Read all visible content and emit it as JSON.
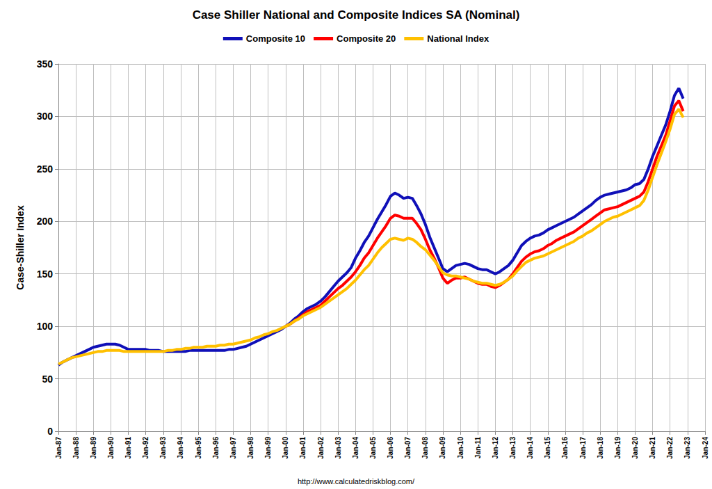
{
  "chart_data": {
    "type": "line",
    "title": "Case Shiller National and Composite Indices SA (Nominal)",
    "y_label": "Case-Shiller Index",
    "source": "http://www.calculatedriskblog.com/",
    "legend": "top",
    "grid": true,
    "ylim": [
      0,
      350
    ],
    "yticks": [
      0,
      50,
      100,
      150,
      200,
      250,
      300,
      350
    ],
    "categories": [
      "Jan-87",
      null,
      null,
      null,
      "Jan-88",
      null,
      null,
      null,
      "Jan-89",
      null,
      null,
      null,
      "Jan-90",
      null,
      null,
      null,
      "Jan-91",
      null,
      null,
      null,
      "Jan-92",
      null,
      null,
      null,
      "Jan-93",
      null,
      null,
      null,
      "Jan-94",
      null,
      null,
      null,
      "Jan-95",
      null,
      null,
      null,
      "Jan-96",
      null,
      null,
      null,
      "Jan-97",
      null,
      null,
      null,
      "Jan-98",
      null,
      null,
      null,
      "Jan-99",
      null,
      null,
      null,
      "Jan-00",
      null,
      null,
      null,
      "Jan-01",
      null,
      null,
      null,
      "Jan-02",
      null,
      null,
      null,
      "Jan-03",
      null,
      null,
      null,
      "Jan-04",
      null,
      null,
      null,
      "Jan-05",
      null,
      null,
      null,
      "Jan-06",
      null,
      null,
      null,
      "Jan-07",
      null,
      null,
      null,
      "Jan-08",
      null,
      null,
      null,
      "Jan-09",
      null,
      null,
      null,
      "Jan-10",
      null,
      null,
      null,
      "Jan-11",
      null,
      null,
      null,
      "Jan-12",
      null,
      null,
      null,
      "Jan-13",
      null,
      null,
      null,
      "Jan-14",
      null,
      null,
      null,
      "Jan-15",
      null,
      null,
      null,
      "Jan-16",
      null,
      null,
      null,
      "Jan-17",
      null,
      null,
      null,
      "Jan-18",
      null,
      null,
      null,
      "Jan-19",
      null,
      null,
      null,
      "Jan-20",
      null,
      null,
      null,
      "Jan-21",
      null,
      null,
      null,
      "Jan-22",
      null,
      null,
      null,
      "Jan-23",
      null,
      null,
      null,
      "Jan-24"
    ],
    "series": [
      {
        "name": "Composite 10",
        "color": "#1010b8",
        "values": [
          63,
          66,
          68,
          70,
          72,
          74,
          76,
          78,
          80,
          81,
          82,
          83,
          83,
          83,
          82,
          80,
          78,
          78,
          78,
          78,
          78,
          77,
          77,
          77,
          76,
          76,
          76,
          76,
          76,
          76,
          77,
          77,
          77,
          77,
          77,
          77,
          77,
          77,
          77,
          78,
          78,
          79,
          80,
          81,
          83,
          85,
          87,
          89,
          91,
          93,
          95,
          97,
          100,
          103,
          107,
          110,
          114,
          117,
          119,
          121,
          124,
          128,
          133,
          138,
          143,
          147,
          151,
          156,
          165,
          172,
          180,
          186,
          194,
          202,
          209,
          216,
          224,
          227,
          225,
          222,
          223,
          222,
          215,
          207,
          197,
          185,
          175,
          165,
          155,
          152,
          155,
          158,
          159,
          160,
          159,
          157,
          155,
          154,
          154,
          152,
          150,
          152,
          155,
          158,
          163,
          170,
          177,
          181,
          184,
          186,
          187,
          189,
          192,
          194,
          196,
          198,
          200,
          202,
          204,
          207,
          210,
          213,
          216,
          220,
          223,
          225,
          226,
          227,
          228,
          229,
          230,
          232,
          235,
          236,
          240,
          250,
          262,
          272,
          282,
          292,
          305,
          320,
          327,
          317,
          null,
          null,
          null,
          null,
          null
        ]
      },
      {
        "name": "Composite 20",
        "color": "#ff0000",
        "values": [
          null,
          null,
          null,
          null,
          null,
          null,
          null,
          null,
          null,
          null,
          null,
          null,
          null,
          null,
          null,
          null,
          null,
          null,
          null,
          null,
          null,
          null,
          null,
          null,
          null,
          null,
          null,
          null,
          null,
          null,
          null,
          null,
          null,
          null,
          null,
          null,
          null,
          null,
          null,
          null,
          null,
          null,
          null,
          null,
          null,
          null,
          null,
          null,
          null,
          null,
          null,
          null,
          100,
          102,
          105,
          108,
          111,
          114,
          116,
          118,
          120,
          124,
          128,
          132,
          136,
          139,
          143,
          147,
          152,
          158,
          165,
          170,
          177,
          184,
          190,
          196,
          203,
          206,
          205,
          203,
          203,
          203,
          198,
          192,
          183,
          173,
          165,
          156,
          146,
          141,
          144,
          146,
          146,
          147,
          145,
          143,
          141,
          140,
          140,
          138,
          137,
          139,
          142,
          145,
          150,
          156,
          162,
          166,
          169,
          171,
          172,
          174,
          177,
          179,
          182,
          184,
          186,
          188,
          190,
          193,
          196,
          199,
          202,
          205,
          208,
          211,
          212,
          213,
          214,
          216,
          218,
          220,
          222,
          224,
          228,
          238,
          250,
          262,
          272,
          282,
          296,
          310,
          315,
          305,
          null,
          null,
          null,
          null,
          null
        ]
      },
      {
        "name": "National Index",
        "color": "#ffc000",
        "values": [
          64,
          66,
          68,
          70,
          71,
          72,
          73,
          74,
          75,
          76,
          76,
          77,
          77,
          77,
          77,
          76,
          76,
          76,
          76,
          76,
          76,
          76,
          76,
          76,
          76,
          77,
          77,
          78,
          78,
          79,
          79,
          80,
          80,
          80,
          81,
          81,
          81,
          82,
          82,
          83,
          83,
          84,
          85,
          86,
          87,
          89,
          90,
          92,
          93,
          95,
          96,
          98,
          100,
          102,
          105,
          107,
          110,
          112,
          114,
          116,
          118,
          121,
          124,
          127,
          130,
          133,
          136,
          140,
          144,
          149,
          154,
          158,
          164,
          170,
          175,
          179,
          183,
          184,
          183,
          182,
          184,
          183,
          180,
          176,
          173,
          168,
          163,
          157,
          151,
          149,
          148,
          148,
          147,
          146,
          145,
          143,
          142,
          141,
          141,
          140,
          139,
          140,
          142,
          145,
          148,
          153,
          157,
          161,
          163,
          165,
          166,
          167,
          169,
          171,
          173,
          175,
          177,
          179,
          181,
          184,
          186,
          189,
          191,
          194,
          197,
          200,
          202,
          204,
          205,
          207,
          209,
          211,
          213,
          215,
          220,
          230,
          242,
          254,
          265,
          276,
          288,
          302,
          307,
          299,
          null,
          null,
          null,
          null,
          null
        ]
      }
    ]
  }
}
